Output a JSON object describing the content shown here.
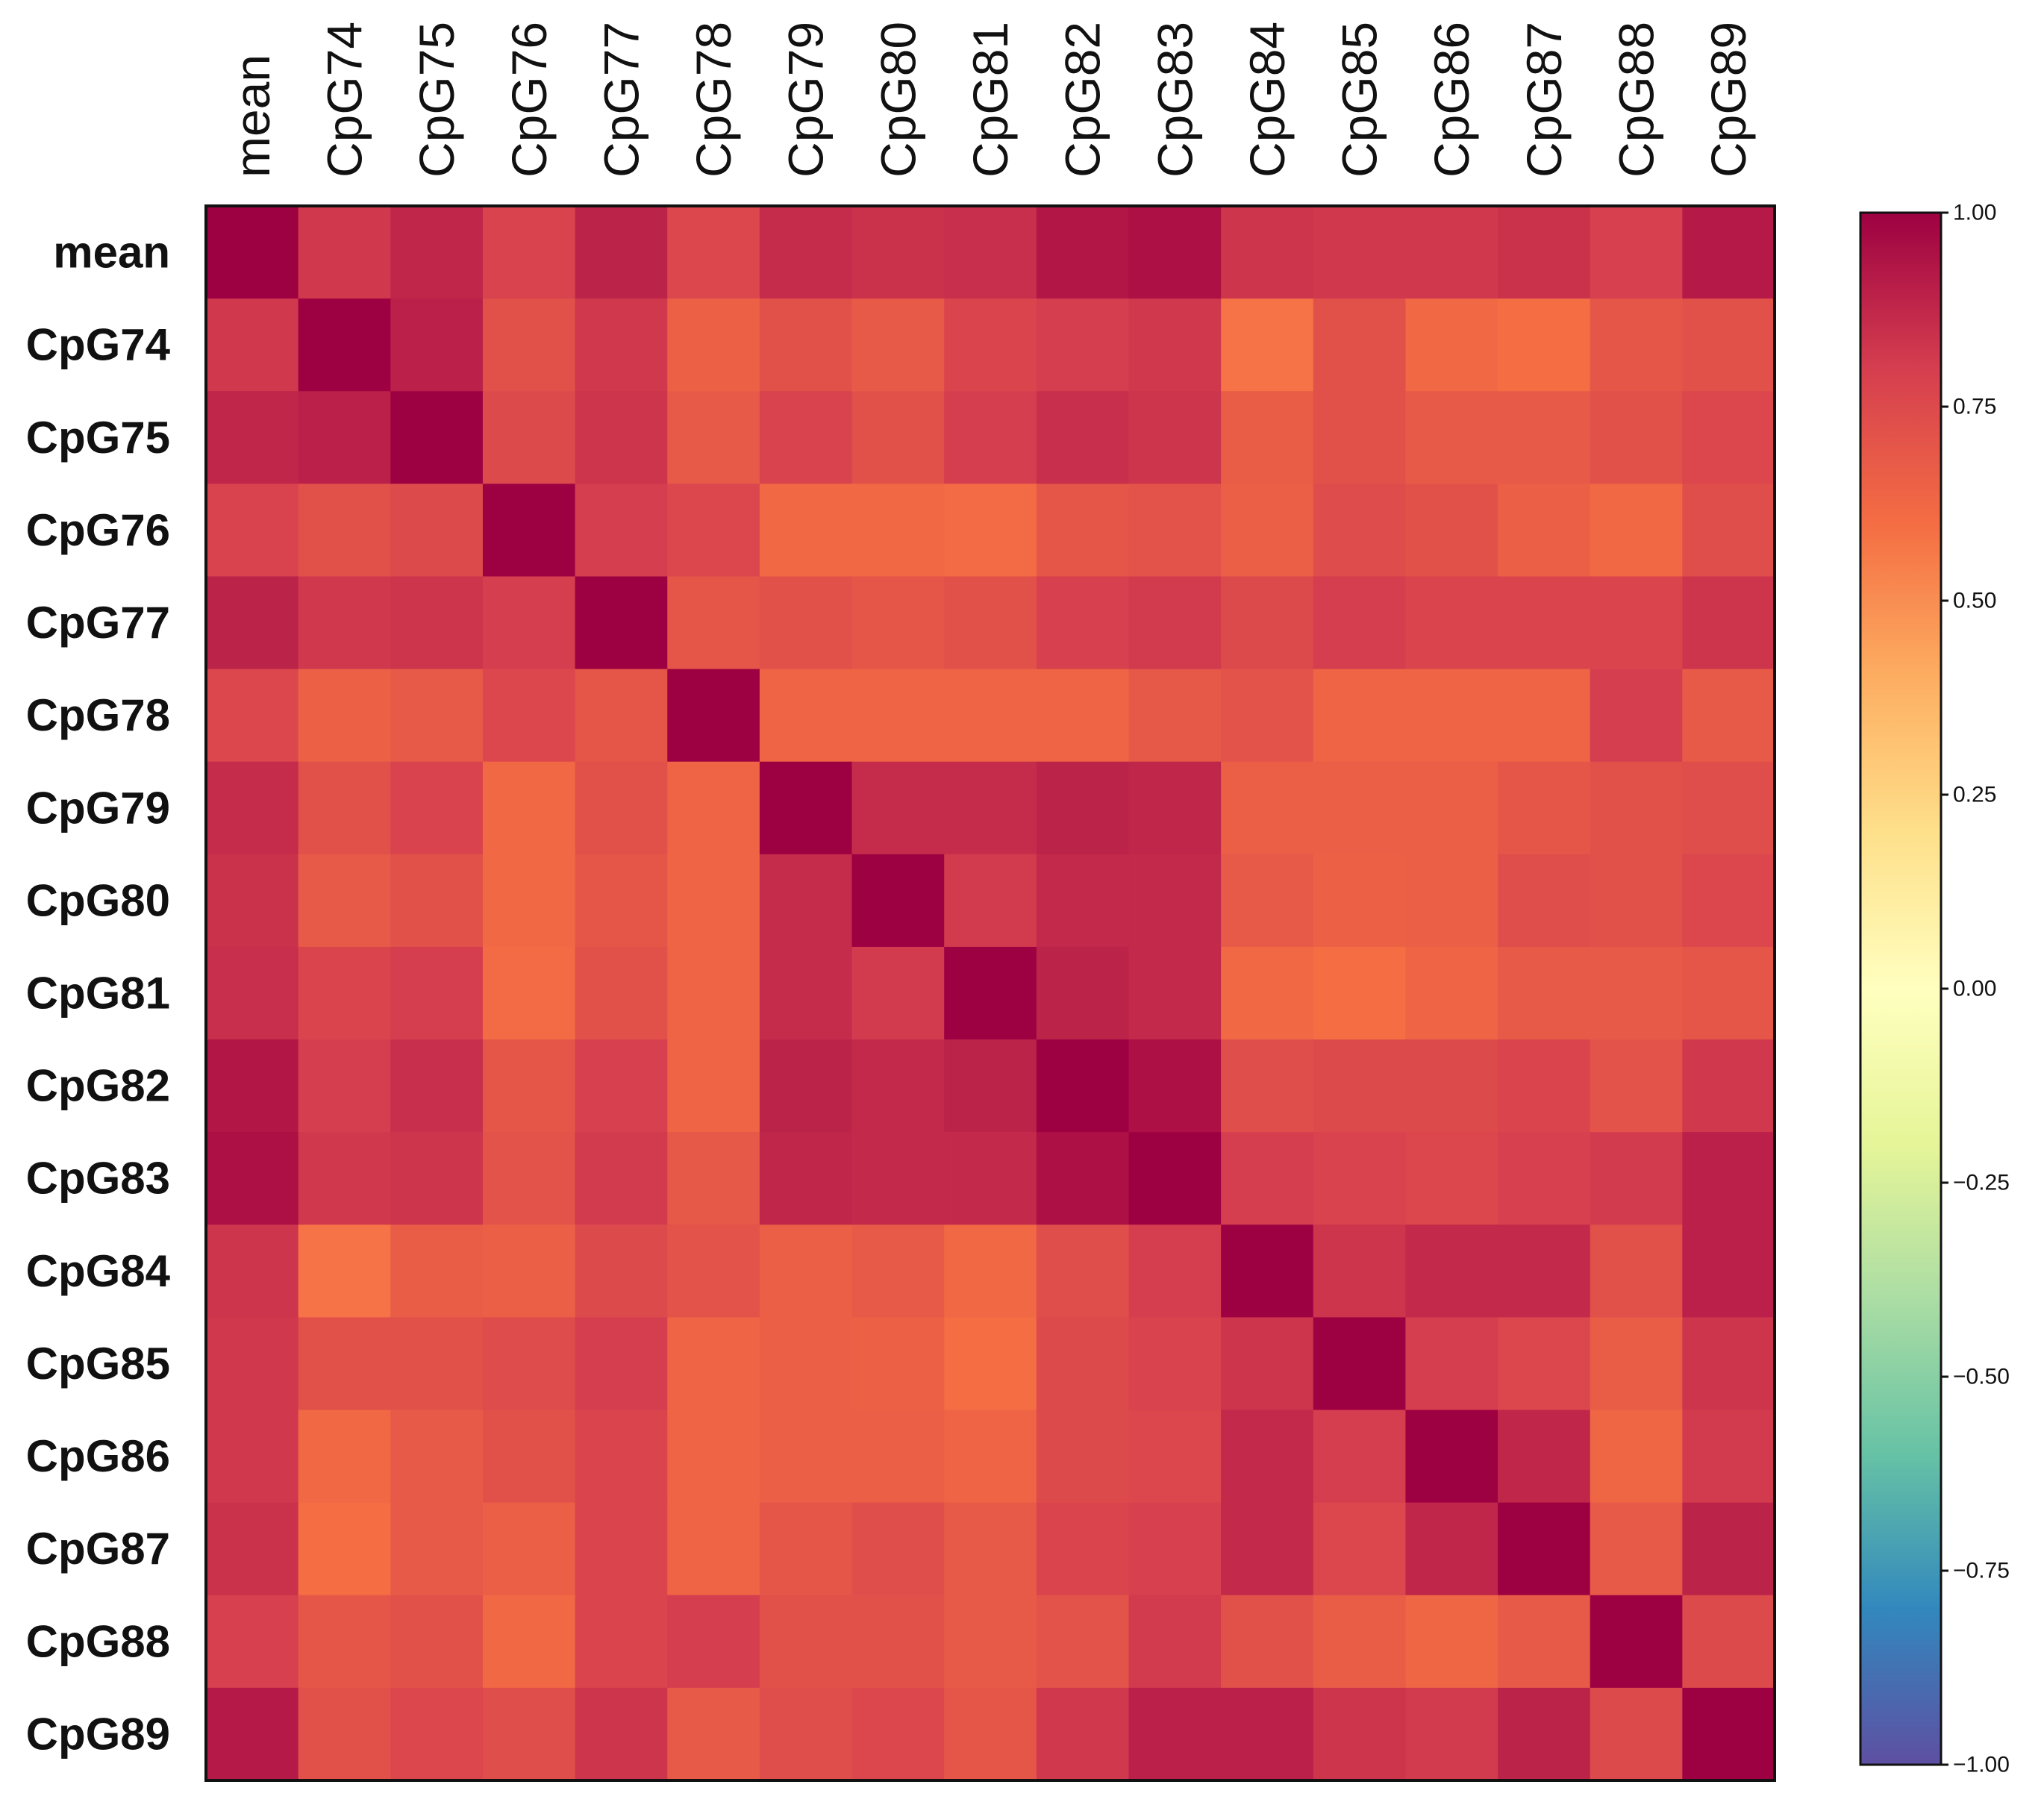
{
  "chart_data": {
    "type": "heatmap",
    "title": "",
    "xlabel": "",
    "ylabel": "",
    "labels": [
      "mean",
      "CpG74",
      "CpG75",
      "CpG76",
      "CpG77",
      "CpG78",
      "CpG79",
      "CpG80",
      "CpG81",
      "CpG82",
      "CpG83",
      "CpG84",
      "CpG85",
      "CpG86",
      "CpG87",
      "CpG88",
      "CpG89"
    ],
    "colormap": "Spectral_r",
    "vmin": -1.0,
    "vmax": 1.0,
    "colorbar_ticks": [
      1.0,
      0.75,
      0.5,
      0.25,
      0.0,
      -0.25,
      -0.5,
      -0.75,
      -1.0
    ],
    "colorbar_tick_labels": [
      "1.00",
      "0.75",
      "0.50",
      "0.25",
      "0.00",
      "−0.25",
      "−0.50",
      "−0.75",
      "−1.00"
    ],
    "colorbar_placement": "right",
    "x_tick_position": "top",
    "matrix": [
      [
        1.0,
        0.82,
        0.88,
        0.78,
        0.89,
        0.76,
        0.86,
        0.84,
        0.85,
        0.93,
        0.95,
        0.83,
        0.82,
        0.82,
        0.84,
        0.79,
        0.92
      ],
      [
        0.82,
        1.0,
        0.9,
        0.72,
        0.82,
        0.65,
        0.72,
        0.68,
        0.77,
        0.8,
        0.82,
        0.58,
        0.72,
        0.62,
        0.6,
        0.7,
        0.72
      ],
      [
        0.88,
        0.9,
        1.0,
        0.75,
        0.83,
        0.68,
        0.78,
        0.72,
        0.8,
        0.85,
        0.83,
        0.67,
        0.72,
        0.68,
        0.68,
        0.72,
        0.76
      ],
      [
        0.78,
        0.72,
        0.75,
        1.0,
        0.8,
        0.76,
        0.62,
        0.62,
        0.61,
        0.7,
        0.71,
        0.66,
        0.74,
        0.72,
        0.66,
        0.62,
        0.73
      ],
      [
        0.89,
        0.82,
        0.83,
        0.8,
        1.0,
        0.7,
        0.72,
        0.7,
        0.72,
        0.79,
        0.81,
        0.75,
        0.8,
        0.77,
        0.77,
        0.77,
        0.83
      ],
      [
        0.76,
        0.65,
        0.68,
        0.76,
        0.7,
        1.0,
        0.64,
        0.64,
        0.64,
        0.64,
        0.69,
        0.71,
        0.64,
        0.64,
        0.64,
        0.8,
        0.68
      ],
      [
        0.86,
        0.72,
        0.78,
        0.62,
        0.72,
        0.64,
        1.0,
        0.86,
        0.86,
        0.89,
        0.88,
        0.66,
        0.66,
        0.66,
        0.7,
        0.72,
        0.73
      ],
      [
        0.84,
        0.68,
        0.72,
        0.62,
        0.7,
        0.64,
        0.86,
        1.0,
        0.81,
        0.87,
        0.87,
        0.68,
        0.65,
        0.66,
        0.73,
        0.72,
        0.76
      ],
      [
        0.85,
        0.77,
        0.8,
        0.61,
        0.72,
        0.64,
        0.86,
        0.81,
        1.0,
        0.89,
        0.87,
        0.62,
        0.6,
        0.64,
        0.68,
        0.68,
        0.7
      ],
      [
        0.93,
        0.8,
        0.85,
        0.7,
        0.79,
        0.64,
        0.89,
        0.87,
        0.89,
        1.0,
        0.95,
        0.73,
        0.75,
        0.75,
        0.77,
        0.71,
        0.82
      ],
      [
        0.95,
        0.82,
        0.83,
        0.71,
        0.81,
        0.69,
        0.88,
        0.87,
        0.87,
        0.95,
        1.0,
        0.8,
        0.78,
        0.76,
        0.79,
        0.81,
        0.9
      ],
      [
        0.83,
        0.58,
        0.67,
        0.66,
        0.75,
        0.71,
        0.66,
        0.68,
        0.62,
        0.73,
        0.8,
        1.0,
        0.83,
        0.87,
        0.87,
        0.72,
        0.9
      ],
      [
        0.82,
        0.72,
        0.72,
        0.74,
        0.8,
        0.64,
        0.66,
        0.65,
        0.6,
        0.75,
        0.78,
        0.83,
        1.0,
        0.8,
        0.76,
        0.67,
        0.83
      ],
      [
        0.82,
        0.62,
        0.68,
        0.72,
        0.77,
        0.64,
        0.66,
        0.66,
        0.64,
        0.75,
        0.76,
        0.87,
        0.8,
        1.0,
        0.88,
        0.63,
        0.81
      ],
      [
        0.84,
        0.6,
        0.68,
        0.66,
        0.77,
        0.64,
        0.7,
        0.73,
        0.68,
        0.77,
        0.79,
        0.87,
        0.76,
        0.88,
        1.0,
        0.68,
        0.89
      ],
      [
        0.79,
        0.7,
        0.72,
        0.62,
        0.77,
        0.8,
        0.72,
        0.72,
        0.68,
        0.71,
        0.81,
        0.72,
        0.67,
        0.63,
        0.68,
        1.0,
        0.75
      ],
      [
        0.92,
        0.72,
        0.76,
        0.73,
        0.83,
        0.68,
        0.73,
        0.76,
        0.7,
        0.82,
        0.9,
        0.9,
        0.83,
        0.81,
        0.89,
        0.75,
        1.0
      ]
    ]
  }
}
